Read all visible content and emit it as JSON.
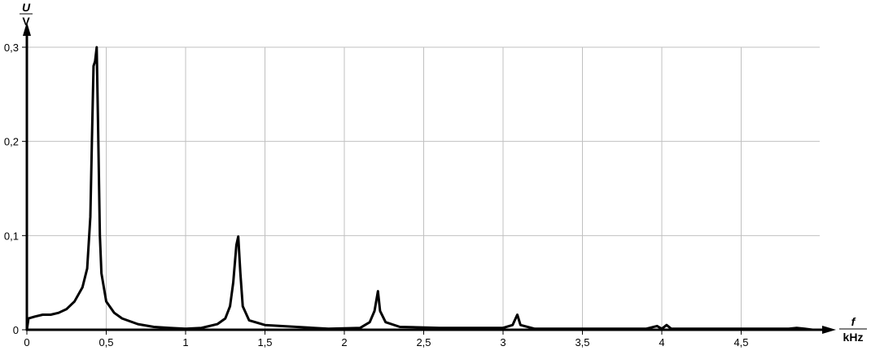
{
  "chart_data": {
    "type": "line",
    "title": "",
    "xlabel": {
      "symbol": "f",
      "unit": "kHz"
    },
    "ylabel": {
      "symbol": "U",
      "unit": "V"
    },
    "xlim": [
      0,
      4.9
    ],
    "ylim": [
      0,
      0.3
    ],
    "grid": true,
    "colors": {
      "line": "#000000",
      "grid": "#c0c0c0",
      "axis": "#000000"
    },
    "x_ticks": [
      {
        "value": 0,
        "label": "0"
      },
      {
        "value": 0.5,
        "label": "0,5"
      },
      {
        "value": 1,
        "label": "1"
      },
      {
        "value": 1.5,
        "label": "1,5"
      },
      {
        "value": 2,
        "label": "2"
      },
      {
        "value": 2.5,
        "label": "2,5"
      },
      {
        "value": 3,
        "label": "3"
      },
      {
        "value": 3.5,
        "label": "3,5"
      },
      {
        "value": 4,
        "label": "4"
      },
      {
        "value": 4.5,
        "label": "4,5"
      }
    ],
    "y_ticks": [
      {
        "value": 0,
        "label": "0"
      },
      {
        "value": 0.1,
        "label": "0,1"
      },
      {
        "value": 0.2,
        "label": "0,2"
      },
      {
        "value": 0.3,
        "label": "0,3"
      }
    ],
    "series": [
      {
        "points": [
          [
            0,
            0
          ],
          [
            0.01,
            0.012
          ],
          [
            0.05,
            0.014
          ],
          [
            0.1,
            0.016
          ],
          [
            0.15,
            0.016
          ],
          [
            0.2,
            0.018
          ],
          [
            0.25,
            0.022
          ],
          [
            0.3,
            0.03
          ],
          [
            0.35,
            0.045
          ],
          [
            0.38,
            0.065
          ],
          [
            0.4,
            0.12
          ],
          [
            0.41,
            0.2
          ],
          [
            0.42,
            0.28
          ],
          [
            0.43,
            0.285
          ],
          [
            0.44,
            0.3
          ],
          [
            0.45,
            0.2
          ],
          [
            0.46,
            0.1
          ],
          [
            0.47,
            0.06
          ],
          [
            0.5,
            0.03
          ],
          [
            0.55,
            0.018
          ],
          [
            0.6,
            0.012
          ],
          [
            0.7,
            0.006
          ],
          [
            0.8,
            0.003
          ],
          [
            0.9,
            0.002
          ],
          [
            1.0,
            0.001
          ],
          [
            1.1,
            0.002
          ],
          [
            1.2,
            0.006
          ],
          [
            1.25,
            0.012
          ],
          [
            1.28,
            0.025
          ],
          [
            1.3,
            0.05
          ],
          [
            1.32,
            0.09
          ],
          [
            1.332,
            0.099
          ],
          [
            1.345,
            0.06
          ],
          [
            1.36,
            0.025
          ],
          [
            1.4,
            0.01
          ],
          [
            1.5,
            0.005
          ],
          [
            1.7,
            0.003
          ],
          [
            1.9,
            0.001
          ],
          [
            2.1,
            0.002
          ],
          [
            2.16,
            0.008
          ],
          [
            2.19,
            0.02
          ],
          [
            2.212,
            0.041
          ],
          [
            2.225,
            0.02
          ],
          [
            2.26,
            0.008
          ],
          [
            2.35,
            0.003
          ],
          [
            2.6,
            0.002
          ],
          [
            3.0,
            0.002
          ],
          [
            3.06,
            0.005
          ],
          [
            3.09,
            0.016
          ],
          [
            3.11,
            0.005
          ],
          [
            3.2,
            0.001
          ],
          [
            3.9,
            0.001
          ],
          [
            3.97,
            0.004
          ],
          [
            4.0,
            0.001
          ],
          [
            4.03,
            0.005
          ],
          [
            4.06,
            0.001
          ],
          [
            4.8,
            0.001
          ],
          [
            4.85,
            0.002
          ],
          [
            4.9,
            0.001
          ],
          [
            4.95,
            0
          ]
        ]
      }
    ]
  }
}
